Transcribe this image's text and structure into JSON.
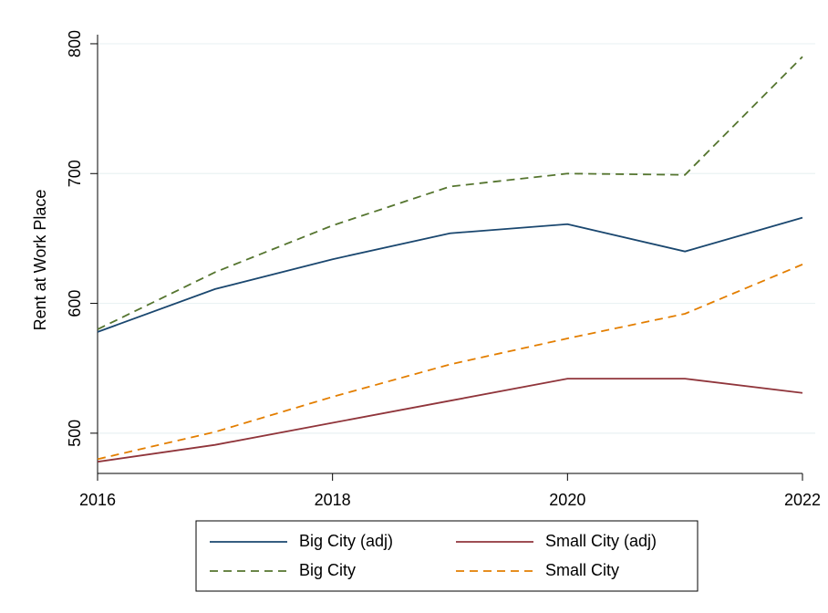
{
  "chart_data": {
    "type": "line",
    "ylabel": "Rent at Work Place",
    "x": [
      2016,
      2017,
      2018,
      2019,
      2020,
      2021,
      2022
    ],
    "xlim": [
      2016,
      2022
    ],
    "xticks": [
      2016,
      2018,
      2020,
      2022
    ],
    "ylim": [
      469,
      807
    ],
    "yticks": [
      500,
      600,
      700,
      800
    ],
    "grid": true,
    "series": [
      {
        "name": "Big City (adj)",
        "color": "#1a476f",
        "dash": false,
        "values": [
          578,
          611,
          634,
          654,
          661,
          640,
          666
        ]
      },
      {
        "name": "Small City (adj)",
        "color": "#90353b",
        "dash": false,
        "values": [
          478,
          491,
          508,
          525,
          542,
          542,
          531
        ]
      },
      {
        "name": "Big City",
        "color": "#55752f",
        "dash": true,
        "values": [
          580,
          624,
          660,
          690,
          700,
          699,
          790
        ]
      },
      {
        "name": "Small City",
        "color": "#e37e00",
        "dash": true,
        "values": [
          480,
          501,
          528,
          553,
          573,
          592,
          630
        ]
      }
    ]
  }
}
